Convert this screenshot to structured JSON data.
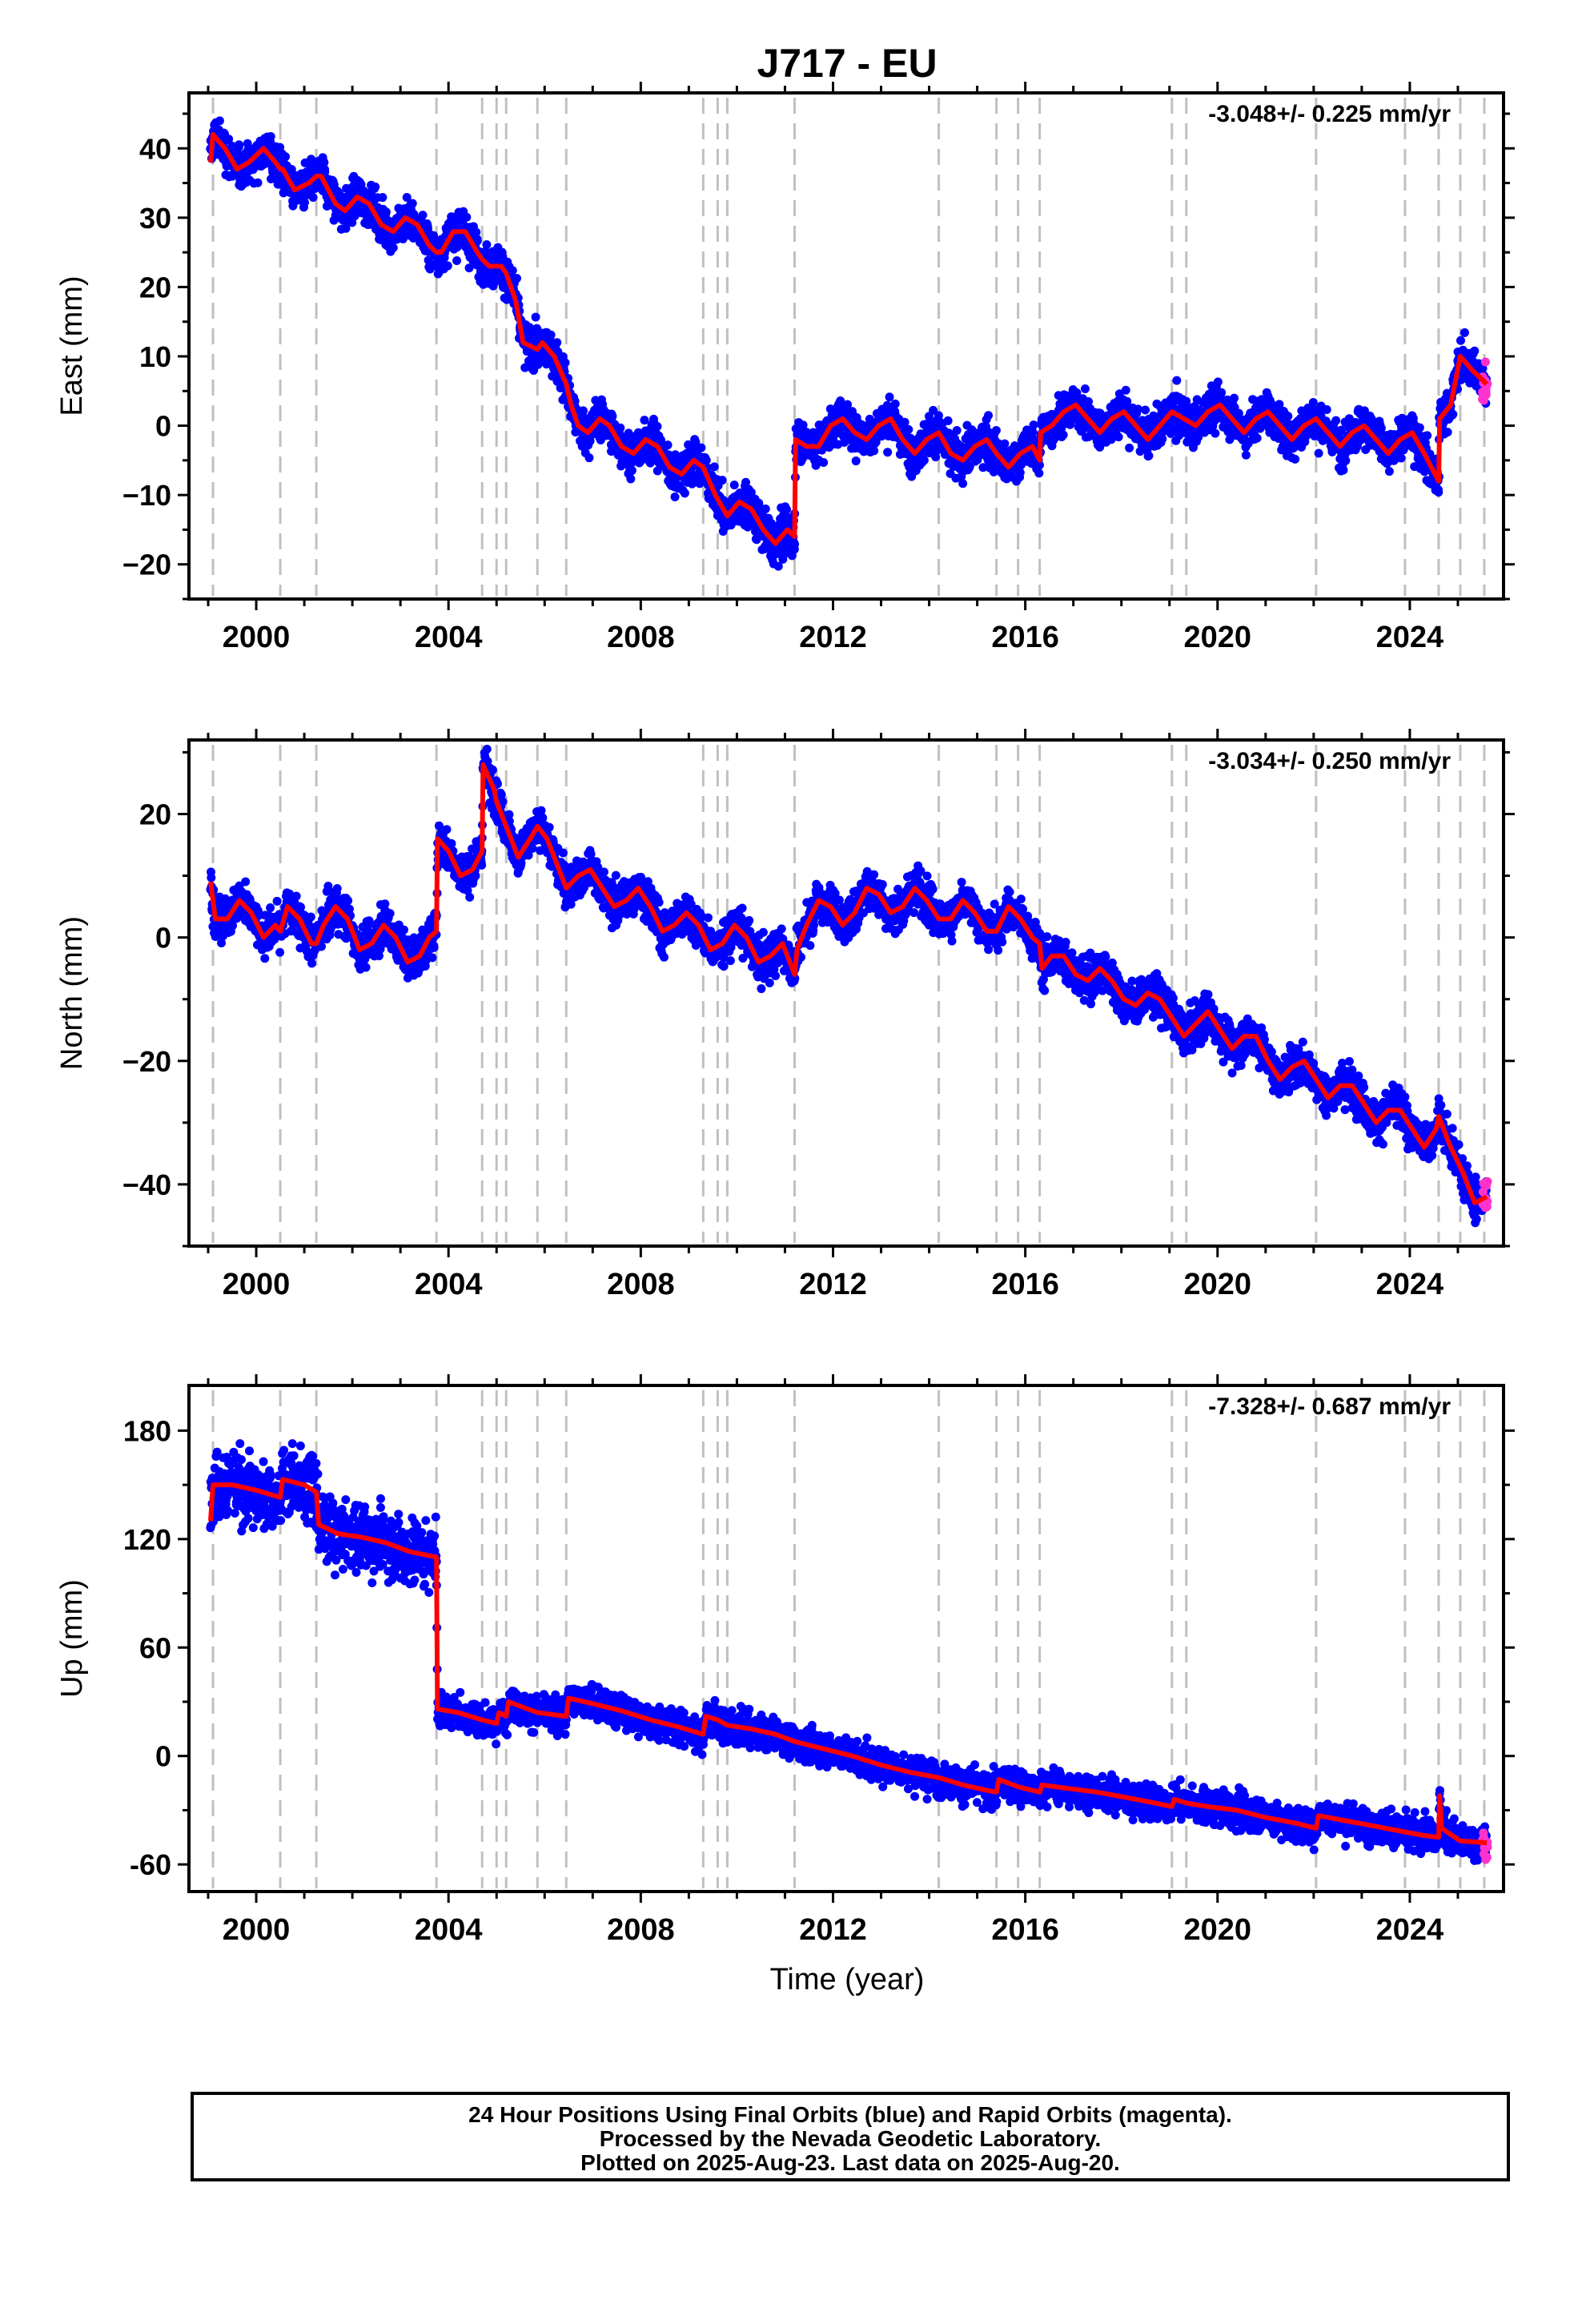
{
  "title": "J717 - EU",
  "xlabel": "Time (year)",
  "footer": {
    "line1": "24 Hour Positions Using Final Orbits (blue) and Rapid Orbits (magenta).",
    "line2": "Processed by the Nevada Geodetic Laboratory.",
    "line3": "Plotted on 2025-Aug-23. Last data on 2025-Aug-20."
  },
  "colors": {
    "final": "#0000ff",
    "rapid": "#ff33cc",
    "model": "#ff0000",
    "breaks": "#c0c0c0"
  },
  "chart_data": [
    {
      "type": "scatter",
      "panel": "east",
      "ylabel": "East (mm)",
      "rate_label": "-3.048+/- 0.225 mm/yr",
      "xlim": [
        1998.6,
        2025.95
      ],
      "ylim": [
        -25,
        48
      ],
      "xticks": [
        2000,
        2004,
        2008,
        2012,
        2016,
        2020,
        2024
      ],
      "yticks": [
        -20,
        -10,
        0,
        10,
        20,
        30,
        40
      ],
      "ytick_labels": [
        "−20",
        "−10",
        "0",
        "10",
        "20",
        "30",
        "40"
      ],
      "grid": false,
      "breaks": [
        1999.1,
        2000.5,
        2001.25,
        2003.75,
        2004.7,
        2005.0,
        2005.2,
        2005.85,
        2006.45,
        2009.3,
        2009.6,
        2009.8,
        2011.2,
        2014.2,
        2015.4,
        2015.85,
        2016.3,
        2019.05,
        2019.35,
        2022.05,
        2023.9,
        2024.6,
        2025.05,
        2025.55
      ],
      "model": [
        [
          1999.05,
          38
        ],
        [
          1999.1,
          42
        ],
        [
          1999.35,
          40
        ],
        [
          1999.6,
          37
        ],
        [
          1999.85,
          38
        ],
        [
          2000.15,
          40
        ],
        [
          2000.4,
          38
        ],
        [
          2000.5,
          37
        ],
        [
          2000.55,
          37
        ],
        [
          2000.8,
          34
        ],
        [
          2001.1,
          35
        ],
        [
          2001.25,
          36
        ],
        [
          2001.35,
          36
        ],
        [
          2001.65,
          32
        ],
        [
          2001.85,
          31
        ],
        [
          2002.1,
          33
        ],
        [
          2002.35,
          32
        ],
        [
          2002.6,
          29
        ],
        [
          2002.85,
          28
        ],
        [
          2003.1,
          30
        ],
        [
          2003.35,
          29
        ],
        [
          2003.6,
          26
        ],
        [
          2003.75,
          25
        ],
        [
          2003.85,
          25
        ],
        [
          2004.1,
          28
        ],
        [
          2004.35,
          28
        ],
        [
          2004.6,
          25
        ],
        [
          2004.7,
          24
        ],
        [
          2004.85,
          23
        ],
        [
          2005.0,
          23
        ],
        [
          2005.1,
          23
        ],
        [
          2005.2,
          22
        ],
        [
          2005.4,
          18
        ],
        [
          2005.55,
          12
        ],
        [
          2005.85,
          11
        ],
        [
          2005.95,
          12
        ],
        [
          2006.2,
          10
        ],
        [
          2006.45,
          6
        ],
        [
          2006.55,
          3
        ],
        [
          2006.7,
          0
        ],
        [
          2006.9,
          -1
        ],
        [
          2007.15,
          1
        ],
        [
          2007.35,
          0
        ],
        [
          2007.6,
          -3
        ],
        [
          2007.85,
          -4
        ],
        [
          2008.1,
          -2
        ],
        [
          2008.35,
          -3
        ],
        [
          2008.6,
          -6
        ],
        [
          2008.85,
          -7
        ],
        [
          2009.1,
          -5
        ],
        [
          2009.3,
          -6
        ],
        [
          2009.55,
          -10
        ],
        [
          2009.8,
          -13
        ],
        [
          2010.05,
          -11
        ],
        [
          2010.3,
          -12
        ],
        [
          2010.55,
          -15
        ],
        [
          2010.8,
          -17
        ],
        [
          2011.05,
          -15
        ],
        [
          2011.2,
          -16
        ],
        [
          2011.22,
          -2
        ],
        [
          2011.45,
          -3
        ],
        [
          2011.7,
          -3
        ],
        [
          2011.95,
          0
        ],
        [
          2012.2,
          1
        ],
        [
          2012.45,
          -1
        ],
        [
          2012.7,
          -2
        ],
        [
          2012.95,
          0
        ],
        [
          2013.2,
          1
        ],
        [
          2013.45,
          -2
        ],
        [
          2013.7,
          -4
        ],
        [
          2013.95,
          -2
        ],
        [
          2014.2,
          -1
        ],
        [
          2014.45,
          -4
        ],
        [
          2014.7,
          -5
        ],
        [
          2014.95,
          -3
        ],
        [
          2015.2,
          -2
        ],
        [
          2015.4,
          -4
        ],
        [
          2015.65,
          -6
        ],
        [
          2015.9,
          -4
        ],
        [
          2016.15,
          -3
        ],
        [
          2016.3,
          -5
        ],
        [
          2016.32,
          -1
        ],
        [
          2016.55,
          0
        ],
        [
          2016.8,
          2
        ],
        [
          2017.05,
          3
        ],
        [
          2017.3,
          1
        ],
        [
          2017.55,
          -1
        ],
        [
          2017.8,
          1
        ],
        [
          2018.05,
          2
        ],
        [
          2018.3,
          0
        ],
        [
          2018.55,
          -2
        ],
        [
          2018.8,
          0
        ],
        [
          2019.05,
          2
        ],
        [
          2019.3,
          1
        ],
        [
          2019.55,
          0
        ],
        [
          2019.8,
          2
        ],
        [
          2020.05,
          3
        ],
        [
          2020.3,
          1
        ],
        [
          2020.55,
          -1
        ],
        [
          2020.8,
          1
        ],
        [
          2021.05,
          2
        ],
        [
          2021.3,
          0
        ],
        [
          2021.55,
          -2
        ],
        [
          2021.8,
          0
        ],
        [
          2022.05,
          1
        ],
        [
          2022.3,
          -1
        ],
        [
          2022.55,
          -3
        ],
        [
          2022.8,
          -1
        ],
        [
          2023.05,
          0
        ],
        [
          2023.3,
          -2
        ],
        [
          2023.55,
          -4
        ],
        [
          2023.8,
          -2
        ],
        [
          2024.05,
          -1
        ],
        [
          2024.3,
          -4
        ],
        [
          2024.6,
          -8
        ],
        [
          2024.62,
          1
        ],
        [
          2024.85,
          3
        ],
        [
          2025.05,
          10
        ],
        [
          2025.3,
          8
        ],
        [
          2025.6,
          6
        ]
      ]
    },
    {
      "type": "scatter",
      "panel": "north",
      "ylabel": "North (mm)",
      "rate_label": "-3.034+/- 0.250 mm/yr",
      "xlim": [
        1998.6,
        2025.95
      ],
      "ylim": [
        -50,
        32
      ],
      "xticks": [
        2000,
        2004,
        2008,
        2012,
        2016,
        2020,
        2024
      ],
      "yticks": [
        -40,
        -20,
        0,
        20
      ],
      "ytick_labels": [
        "−40",
        "−20",
        "0",
        "20"
      ],
      "grid": false,
      "breaks": [
        1999.1,
        2000.5,
        2001.25,
        2003.75,
        2004.7,
        2005.0,
        2005.2,
        2005.85,
        2006.45,
        2009.3,
        2009.6,
        2009.8,
        2011.2,
        2014.2,
        2015.4,
        2015.85,
        2016.3,
        2019.05,
        2019.35,
        2022.05,
        2023.9,
        2024.6,
        2025.05,
        2025.55
      ],
      "model": [
        [
          1999.05,
          9
        ],
        [
          1999.15,
          3
        ],
        [
          1999.4,
          3
        ],
        [
          1999.65,
          6
        ],
        [
          1999.9,
          4
        ],
        [
          2000.15,
          0
        ],
        [
          2000.4,
          2
        ],
        [
          2000.5,
          1
        ],
        [
          2000.65,
          5
        ],
        [
          2000.9,
          3
        ],
        [
          2001.15,
          -1
        ],
        [
          2001.25,
          -1
        ],
        [
          2001.4,
          2
        ],
        [
          2001.65,
          5
        ],
        [
          2001.9,
          3
        ],
        [
          2002.15,
          -2
        ],
        [
          2002.4,
          -1
        ],
        [
          2002.65,
          2
        ],
        [
          2002.9,
          0
        ],
        [
          2003.15,
          -4
        ],
        [
          2003.4,
          -3
        ],
        [
          2003.6,
          0
        ],
        [
          2003.75,
          1
        ],
        [
          2003.77,
          16
        ],
        [
          2004.0,
          14
        ],
        [
          2004.25,
          10
        ],
        [
          2004.5,
          11
        ],
        [
          2004.7,
          14
        ],
        [
          2004.72,
          28
        ],
        [
          2004.95,
          24
        ],
        [
          2005.0,
          22
        ],
        [
          2005.2,
          18
        ],
        [
          2005.45,
          13
        ],
        [
          2005.7,
          16
        ],
        [
          2005.85,
          18
        ],
        [
          2006.05,
          16
        ],
        [
          2006.3,
          11
        ],
        [
          2006.45,
          8
        ],
        [
          2006.7,
          10
        ],
        [
          2006.95,
          11
        ],
        [
          2007.2,
          8
        ],
        [
          2007.45,
          5
        ],
        [
          2007.7,
          6
        ],
        [
          2007.95,
          8
        ],
        [
          2008.2,
          5
        ],
        [
          2008.45,
          1
        ],
        [
          2008.7,
          2
        ],
        [
          2008.95,
          4
        ],
        [
          2009.2,
          2
        ],
        [
          2009.45,
          -2
        ],
        [
          2009.7,
          -1
        ],
        [
          2009.95,
          2
        ],
        [
          2010.2,
          0
        ],
        [
          2010.45,
          -4
        ],
        [
          2010.7,
          -3
        ],
        [
          2010.95,
          -1
        ],
        [
          2011.2,
          -6
        ],
        [
          2011.25,
          -2
        ],
        [
          2011.45,
          2
        ],
        [
          2011.7,
          6
        ],
        [
          2011.95,
          5
        ],
        [
          2012.2,
          2
        ],
        [
          2012.45,
          4
        ],
        [
          2012.7,
          8
        ],
        [
          2012.95,
          7
        ],
        [
          2013.2,
          4
        ],
        [
          2013.45,
          5
        ],
        [
          2013.7,
          8
        ],
        [
          2013.95,
          6
        ],
        [
          2014.2,
          3
        ],
        [
          2014.45,
          3
        ],
        [
          2014.7,
          6
        ],
        [
          2014.95,
          4
        ],
        [
          2015.2,
          1
        ],
        [
          2015.4,
          1
        ],
        [
          2015.65,
          5
        ],
        [
          2015.9,
          3
        ],
        [
          2016.15,
          0
        ],
        [
          2016.3,
          -1
        ],
        [
          2016.35,
          -5
        ],
        [
          2016.55,
          -3
        ],
        [
          2016.8,
          -3
        ],
        [
          2017.05,
          -6
        ],
        [
          2017.3,
          -7
        ],
        [
          2017.55,
          -5
        ],
        [
          2017.8,
          -7
        ],
        [
          2018.05,
          -10
        ],
        [
          2018.3,
          -11
        ],
        [
          2018.55,
          -9
        ],
        [
          2018.8,
          -10
        ],
        [
          2019.05,
          -13
        ],
        [
          2019.3,
          -16
        ],
        [
          2019.55,
          -14
        ],
        [
          2019.8,
          -12
        ],
        [
          2020.05,
          -15
        ],
        [
          2020.3,
          -18
        ],
        [
          2020.55,
          -16
        ],
        [
          2020.8,
          -16
        ],
        [
          2021.05,
          -20
        ],
        [
          2021.3,
          -23
        ],
        [
          2021.55,
          -21
        ],
        [
          2021.8,
          -20
        ],
        [
          2022.05,
          -23
        ],
        [
          2022.3,
          -26
        ],
        [
          2022.55,
          -24
        ],
        [
          2022.8,
          -24
        ],
        [
          2023.05,
          -27
        ],
        [
          2023.3,
          -30
        ],
        [
          2023.55,
          -28
        ],
        [
          2023.8,
          -28
        ],
        [
          2024.05,
          -31
        ],
        [
          2024.3,
          -34
        ],
        [
          2024.55,
          -31
        ],
        [
          2024.6,
          -29
        ],
        [
          2024.85,
          -34
        ],
        [
          2025.1,
          -38
        ],
        [
          2025.35,
          -43
        ],
        [
          2025.6,
          -42
        ]
      ]
    },
    {
      "type": "scatter",
      "panel": "up",
      "ylabel": "Up (mm)",
      "rate_label": "-7.328+/- 0.687 mm/yr",
      "xlim": [
        1998.6,
        2025.95
      ],
      "ylim": [
        -75,
        205
      ],
      "xticks": [
        2000,
        2004,
        2008,
        2012,
        2016,
        2020,
        2024
      ],
      "yticks": [
        -60,
        0,
        60,
        120,
        180
      ],
      "ytick_labels": [
        "-60",
        "0",
        "60",
        "120",
        "180"
      ],
      "grid": false,
      "breaks": [
        1999.1,
        2000.5,
        2001.25,
        2003.75,
        2004.7,
        2005.0,
        2005.2,
        2005.85,
        2006.45,
        2009.3,
        2009.6,
        2009.8,
        2011.2,
        2014.2,
        2015.4,
        2015.85,
        2016.3,
        2019.05,
        2019.35,
        2022.05,
        2023.9,
        2024.6,
        2025.05,
        2025.55
      ],
      "model": [
        [
          1999.05,
          130
        ],
        [
          1999.1,
          150
        ],
        [
          1999.5,
          150
        ],
        [
          2000.0,
          147
        ],
        [
          2000.5,
          143
        ],
        [
          2000.55,
          153
        ],
        [
          2001.0,
          150
        ],
        [
          2001.25,
          146
        ],
        [
          2001.3,
          128
        ],
        [
          2001.7,
          123
        ],
        [
          2002.2,
          121
        ],
        [
          2002.7,
          118
        ],
        [
          2003.2,
          113
        ],
        [
          2003.75,
          110
        ],
        [
          2003.77,
          26
        ],
        [
          2004.2,
          24
        ],
        [
          2004.7,
          20
        ],
        [
          2005.0,
          18
        ],
        [
          2005.05,
          24
        ],
        [
          2005.2,
          22
        ],
        [
          2005.25,
          30
        ],
        [
          2005.85,
          24
        ],
        [
          2006.45,
          22
        ],
        [
          2006.5,
          32
        ],
        [
          2007.0,
          29
        ],
        [
          2007.6,
          25
        ],
        [
          2008.2,
          20
        ],
        [
          2008.8,
          16
        ],
        [
          2009.3,
          12
        ],
        [
          2009.35,
          22
        ],
        [
          2009.6,
          20
        ],
        [
          2009.8,
          17
        ],
        [
          2010.3,
          15
        ],
        [
          2010.8,
          12
        ],
        [
          2011.2,
          8
        ],
        [
          2011.8,
          4
        ],
        [
          2012.4,
          0
        ],
        [
          2013.0,
          -5
        ],
        [
          2013.6,
          -9
        ],
        [
          2014.2,
          -12
        ],
        [
          2014.7,
          -16
        ],
        [
          2015.2,
          -19
        ],
        [
          2015.4,
          -20
        ],
        [
          2015.45,
          -13
        ],
        [
          2015.85,
          -17
        ],
        [
          2016.3,
          -20
        ],
        [
          2016.35,
          -16
        ],
        [
          2016.9,
          -18
        ],
        [
          2017.5,
          -20
        ],
        [
          2018.1,
          -23
        ],
        [
          2018.7,
          -26
        ],
        [
          2019.05,
          -28
        ],
        [
          2019.1,
          -24
        ],
        [
          2019.35,
          -26
        ],
        [
          2019.8,
          -28
        ],
        [
          2020.4,
          -30
        ],
        [
          2021.0,
          -34
        ],
        [
          2021.6,
          -37
        ],
        [
          2022.05,
          -40
        ],
        [
          2022.1,
          -33
        ],
        [
          2022.7,
          -36
        ],
        [
          2023.3,
          -39
        ],
        [
          2023.9,
          -42
        ],
        [
          2024.3,
          -44
        ],
        [
          2024.6,
          -45
        ],
        [
          2024.62,
          -22
        ],
        [
          2024.66,
          -40
        ],
        [
          2025.05,
          -47
        ],
        [
          2025.6,
          -48
        ]
      ]
    }
  ]
}
